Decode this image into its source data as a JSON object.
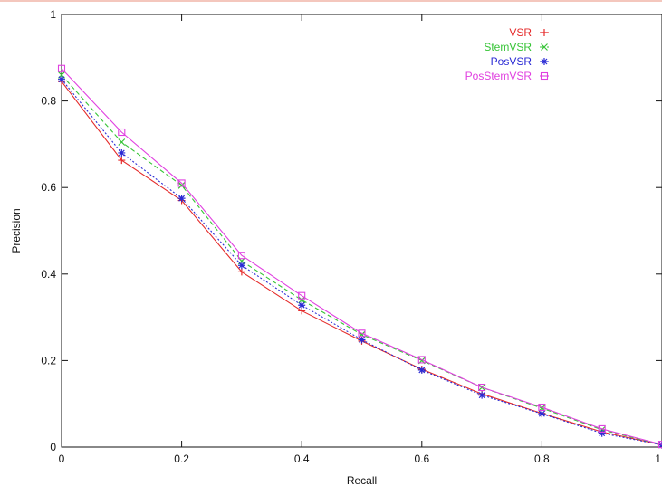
{
  "chart_data": {
    "type": "line",
    "title": "",
    "xlabel": "Recall",
    "ylabel": "Precision",
    "xlim": [
      0,
      1
    ],
    "ylim": [
      0,
      1
    ],
    "x": [
      0,
      0.1,
      0.2,
      0.3,
      0.4,
      0.5,
      0.6,
      0.7,
      0.8,
      0.9,
      1.0
    ],
    "x_tick_values": [
      0,
      0.2,
      0.4,
      0.6,
      0.8,
      1
    ],
    "x_tick_labels": [
      "0",
      "0.2",
      "0.4",
      "0.6",
      "0.8",
      "1"
    ],
    "y_tick_values": [
      0,
      0.2,
      0.4,
      0.6,
      0.8,
      1
    ],
    "y_tick_labels": [
      "0",
      "0.2",
      "0.4",
      "0.6",
      "0.8",
      "1"
    ],
    "grid": false,
    "legend_position": "top-right",
    "series": [
      {
        "name": "VSR",
        "color": "#e52b2b",
        "dash": "solid",
        "marker": "plus",
        "values": [
          0.845,
          0.663,
          0.57,
          0.405,
          0.315,
          0.245,
          0.18,
          0.123,
          0.078,
          0.035,
          0.005
        ]
      },
      {
        "name": "StemVSR",
        "color": "#36c436",
        "dash": "dashed",
        "marker": "x",
        "values": [
          0.86,
          0.705,
          0.605,
          0.43,
          0.34,
          0.26,
          0.2,
          0.138,
          0.09,
          0.04,
          0.005
        ]
      },
      {
        "name": "PosVSR",
        "color": "#2a2ad4",
        "dash": "dotted",
        "marker": "star",
        "values": [
          0.85,
          0.68,
          0.575,
          0.42,
          0.328,
          0.248,
          0.178,
          0.12,
          0.077,
          0.032,
          0.005
        ]
      },
      {
        "name": "PosStemVSR",
        "color": "#e040e0",
        "dash": "solid",
        "marker": "square",
        "values": [
          0.875,
          0.728,
          0.61,
          0.443,
          0.35,
          0.263,
          0.202,
          0.138,
          0.092,
          0.042,
          0.006
        ]
      }
    ]
  }
}
